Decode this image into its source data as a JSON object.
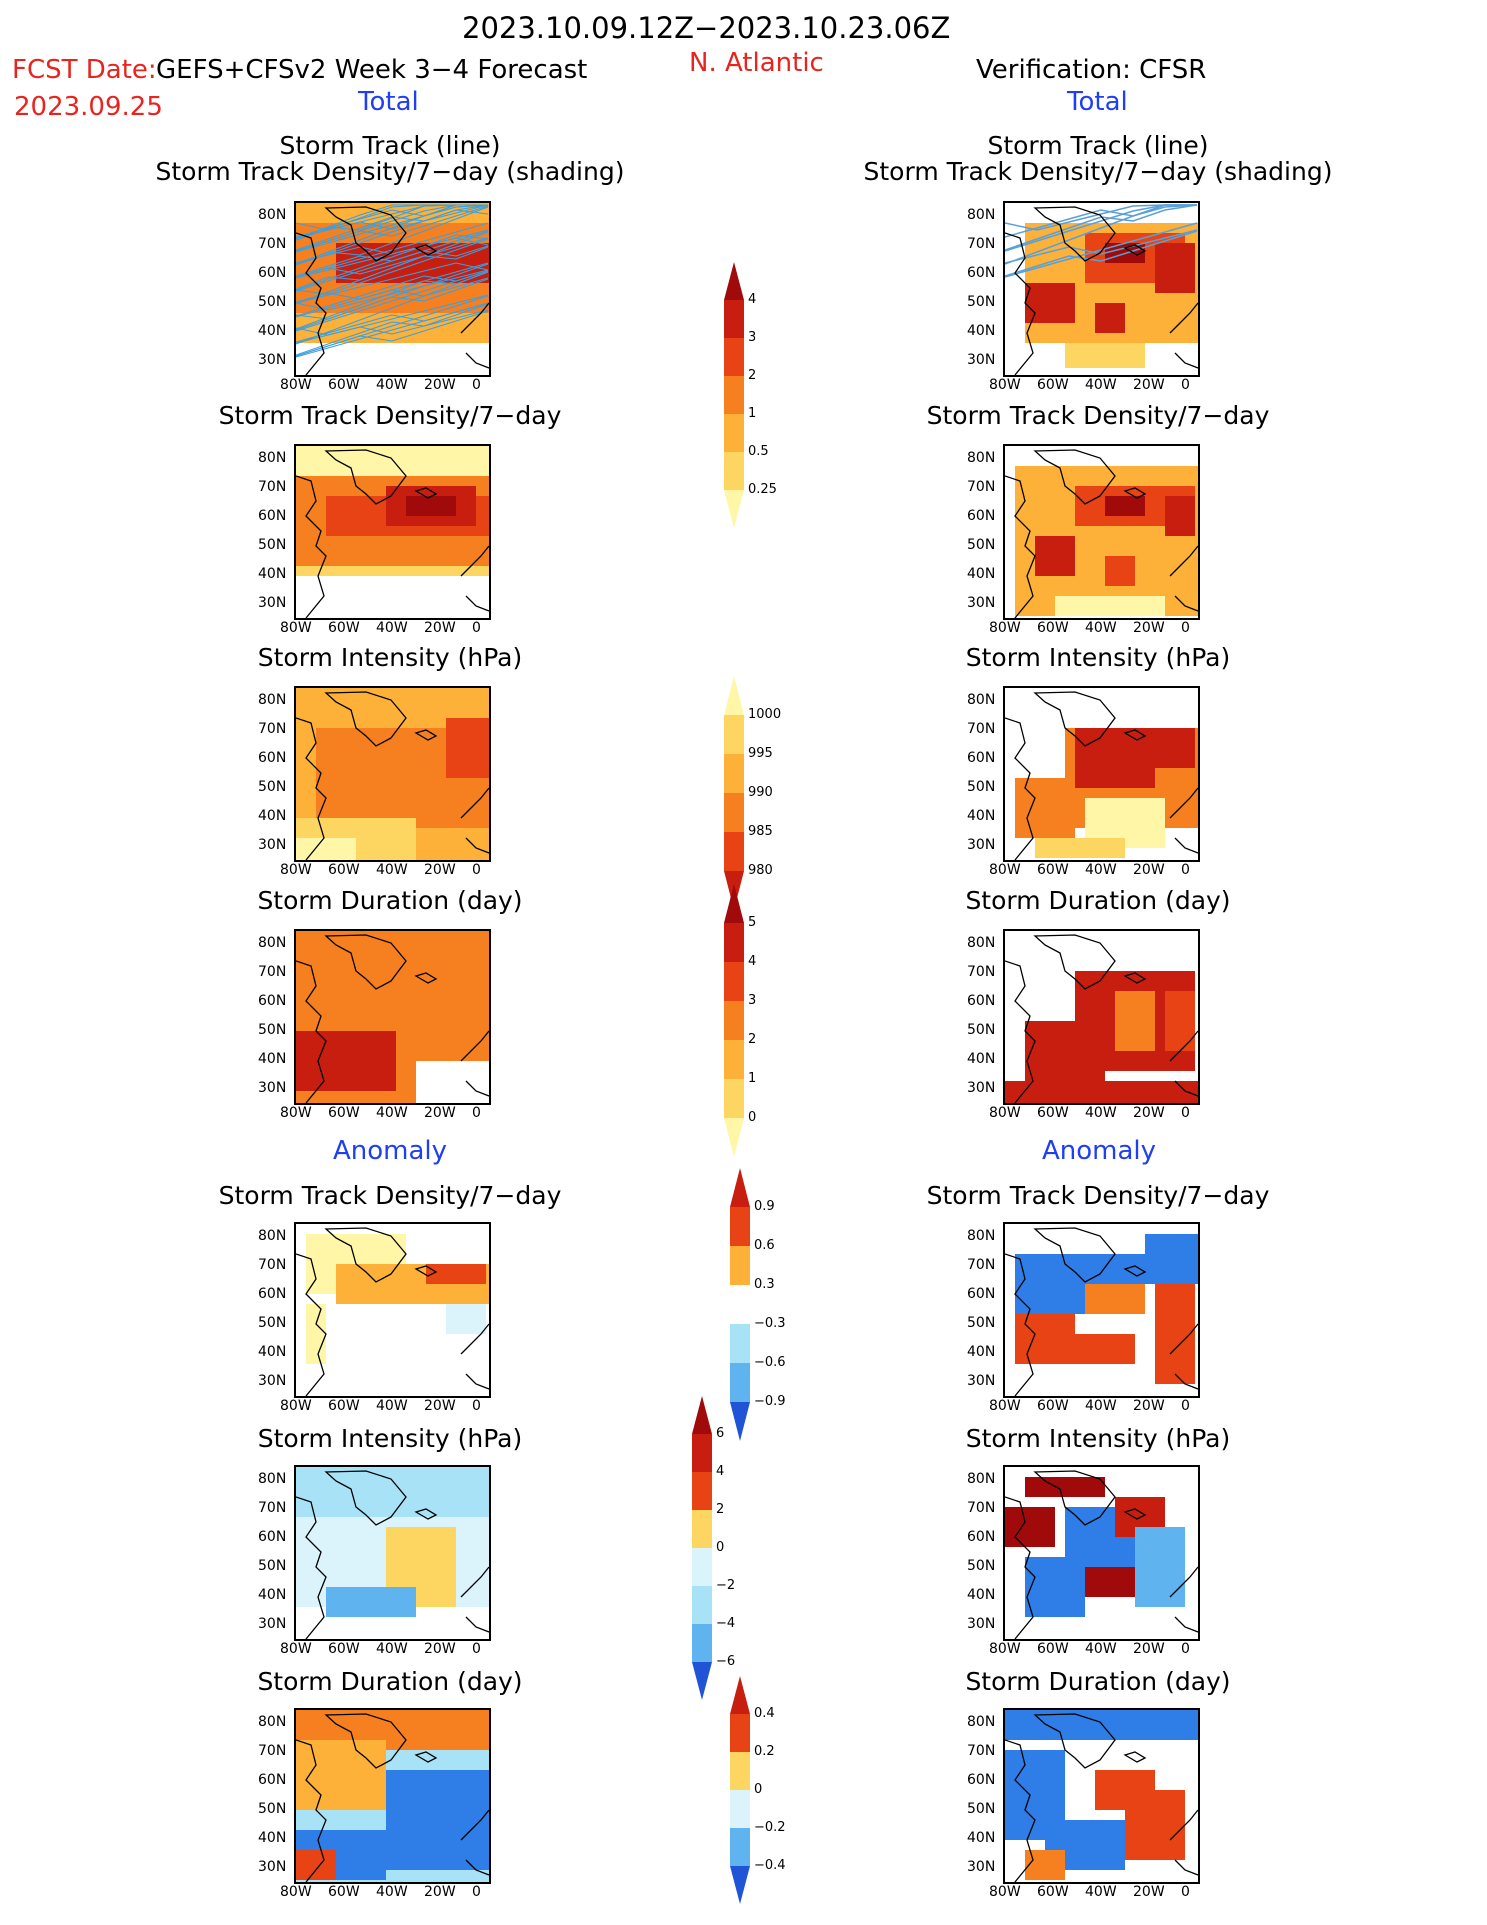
{
  "header": {
    "period": "2023.10.09.12Z−2023.10.23.06Z",
    "fcst_label": "FCST Date:",
    "fcst_model": "GEFS+CFSv2 Week 3−4 Forecast",
    "fcst_date": "2023.09.25",
    "region": "N. Atlantic",
    "verification": "Verification: CFSR",
    "total_left": "Total",
    "total_right": "Total",
    "anomaly_left": "Anomaly",
    "anomaly_right": "Anomaly"
  },
  "panel_titles": {
    "track_line": "Storm Track (line)",
    "track_shading": "Storm Track Density/7−day (shading)",
    "density": "Storm Track Density/7−day",
    "intensity": "Storm Intensity (hPa)",
    "duration": "Storm Duration (day)"
  },
  "axes": {
    "lat_labels": [
      "80N",
      "70N",
      "60N",
      "50N",
      "40N",
      "30N"
    ],
    "lon_labels": [
      "80W",
      "60W",
      "40W",
      "20W",
      "0"
    ]
  },
  "colorbars": {
    "density_total": [
      "4",
      "3",
      "2",
      "1",
      "0.5",
      "0.25"
    ],
    "intensity_total": [
      "1000",
      "995",
      "990",
      "985",
      "980"
    ],
    "duration_total": [
      "5",
      "4",
      "3",
      "2",
      "1",
      "0"
    ],
    "density_anom": [
      "0.9",
      "0.6",
      "0.3",
      "−0.3",
      "−0.6",
      "−0.9"
    ],
    "intensity_anom": [
      "6",
      "4",
      "2",
      "0",
      "−2",
      "−4",
      "−6"
    ],
    "duration_anom": [
      "0.4",
      "0.2",
      "0",
      "−0.2",
      "−0.4"
    ]
  },
  "colors": {
    "title_red": "#e8241e",
    "label_blue": "#1f3ff0",
    "warm": [
      "#fff6a8",
      "#fdd661",
      "#fdb138",
      "#f6801f",
      "#e84314",
      "#c81e10",
      "#a00a0a"
    ],
    "cool": [
      "#dbf3fb",
      "#a8e2f6",
      "#5fb3ee",
      "#2f7de6",
      "#1f54d6"
    ],
    "track_forecast": "#3a9fe0",
    "track_obs": "#5aa0d8"
  },
  "panels": [
    {
      "id": "fc-track",
      "column": "forecast",
      "section": "total",
      "title_key": "track_shading",
      "has_line_title": true
    },
    {
      "id": "ob-track",
      "column": "verification",
      "section": "total",
      "title_key": "track_shading",
      "has_line_title": true
    },
    {
      "id": "fc-density",
      "column": "forecast",
      "section": "total",
      "title_key": "density"
    },
    {
      "id": "ob-density",
      "column": "verification",
      "section": "total",
      "title_key": "density"
    },
    {
      "id": "fc-intensity",
      "column": "forecast",
      "section": "total",
      "title_key": "intensity"
    },
    {
      "id": "ob-intensity",
      "column": "verification",
      "section": "total",
      "title_key": "intensity"
    },
    {
      "id": "fc-duration",
      "column": "forecast",
      "section": "total",
      "title_key": "duration"
    },
    {
      "id": "ob-duration",
      "column": "verification",
      "section": "total",
      "title_key": "duration"
    },
    {
      "id": "fc-density-anom",
      "column": "forecast",
      "section": "anomaly",
      "title_key": "density"
    },
    {
      "id": "ob-density-anom",
      "column": "verification",
      "section": "anomaly",
      "title_key": "density"
    },
    {
      "id": "fc-intensity-anom",
      "column": "forecast",
      "section": "anomaly",
      "title_key": "intensity"
    },
    {
      "id": "ob-intensity-anom",
      "column": "verification",
      "section": "anomaly",
      "title_key": "intensity"
    },
    {
      "id": "fc-duration-anom",
      "column": "forecast",
      "section": "anomaly",
      "title_key": "duration"
    },
    {
      "id": "ob-duration-anom",
      "column": "verification",
      "section": "anomaly",
      "title_key": "duration"
    }
  ]
}
